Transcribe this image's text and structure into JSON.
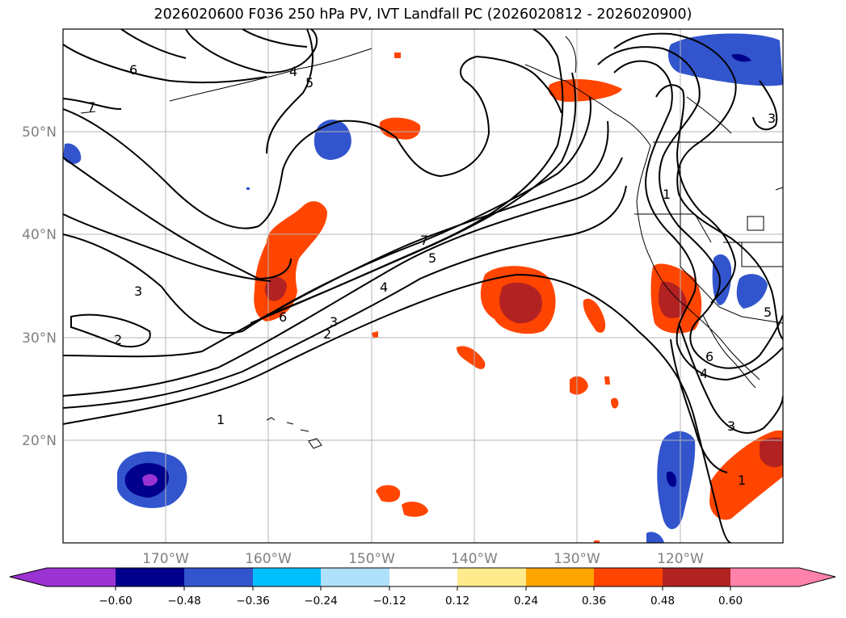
{
  "title": "2026020600 F036 250 hPa PV, IVT Landfall PC (2026020812 - 2026020900)",
  "map": {
    "lat_ticks": [
      "50°N",
      "40°N",
      "30°N",
      "20°N"
    ],
    "lon_ticks": [
      "170°W",
      "160°W",
      "150°W",
      "140°W",
      "130°W",
      "120°W"
    ],
    "gridlines": true,
    "extent": {
      "lon_min": -180,
      "lon_max": -110,
      "lat_min": 10,
      "lat_max": 60
    }
  },
  "contour_labels": [
    "7",
    "6",
    "5",
    "4",
    "3",
    "2",
    "1"
  ],
  "colorbar": {
    "ticks": [
      "−0.60",
      "−0.48",
      "−0.36",
      "−0.24",
      "−0.12",
      "0.12",
      "0.24",
      "0.36",
      "0.48",
      "0.60"
    ],
    "colors": [
      "#9b32d2",
      "#00008c",
      "#3255cd",
      "#00bfff",
      "#afe1fa",
      "#ffffff",
      "#ffeb8c",
      "#ffa500",
      "#ff4500",
      "#b22222",
      "#ff82aa"
    ]
  }
}
